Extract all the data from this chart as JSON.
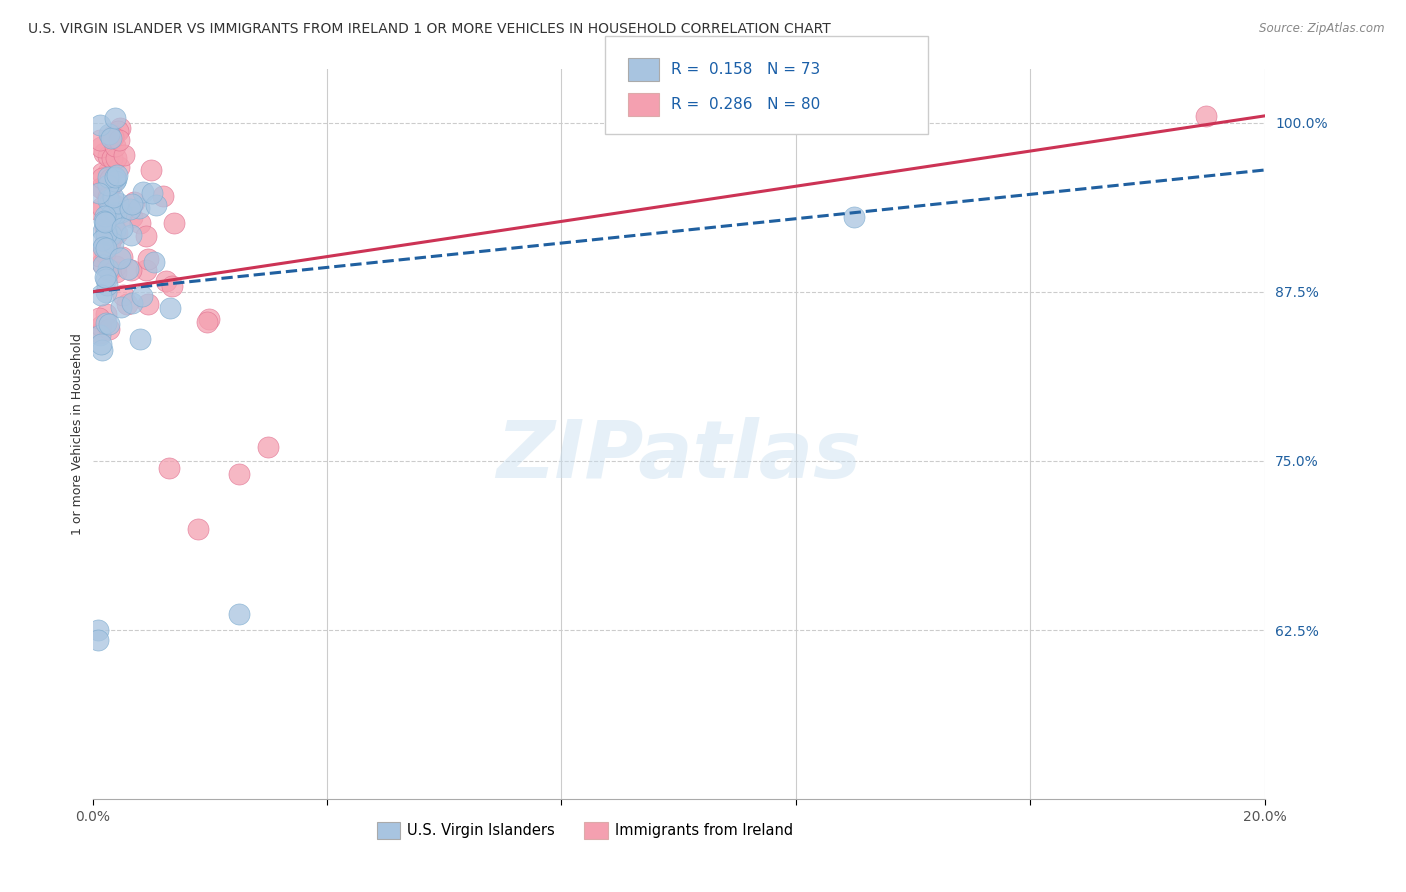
{
  "title": "U.S. VIRGIN ISLANDER VS IMMIGRANTS FROM IRELAND 1 OR MORE VEHICLES IN HOUSEHOLD CORRELATION CHART",
  "source": "Source: ZipAtlas.com",
  "ylabel": "1 or more Vehicles in Household",
  "xlim": [
    0.0,
    0.2
  ],
  "ylim": [
    0.5,
    1.04
  ],
  "yticks": [
    0.625,
    0.75,
    0.875,
    1.0
  ],
  "ytick_labels": [
    "62.5%",
    "75.0%",
    "87.5%",
    "100.0%"
  ],
  "xticks": [
    0.0,
    0.04,
    0.08,
    0.12,
    0.16,
    0.2
  ],
  "xtick_labels": [
    "0.0%",
    "",
    "",
    "",
    "",
    "20.0%"
  ],
  "grid_color": "#cccccc",
  "background_color": "#ffffff",
  "blue_color": "#a8c4e0",
  "pink_color": "#f4a0b0",
  "blue_edge_color": "#7aaace",
  "pink_edge_color": "#e07090",
  "blue_line_color": "#2060a0",
  "pink_line_color": "#cc3355",
  "R_blue": 0.158,
  "N_blue": 73,
  "R_pink": 0.286,
  "N_pink": 80,
  "legend_label_blue": "U.S. Virgin Islanders",
  "legend_label_pink": "Immigrants from Ireland",
  "watermark": "ZIPatlas",
  "title_color": "#333333",
  "source_color": "#888888",
  "tick_color_y": "#2060a0",
  "tick_color_x": "#555555",
  "title_fontsize": 10,
  "axis_label_fontsize": 9,
  "tick_fontsize": 10,
  "legend_fontsize": 11
}
